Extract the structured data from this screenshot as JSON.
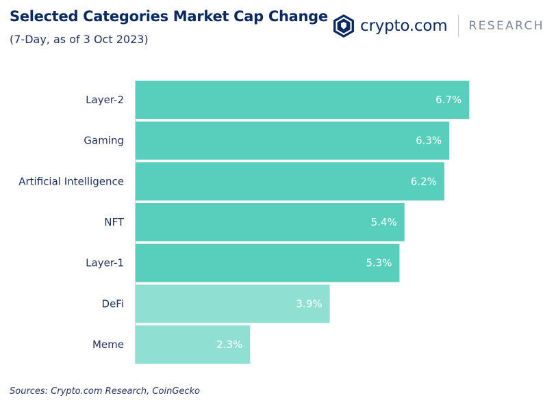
{
  "header": {
    "title": "Selected Categories Market Cap Change",
    "subtitle": "(7-Day, as of 3 Oct 2023)"
  },
  "logo": {
    "icon": "crypto-com-shield-icon",
    "brand": "crypto.com",
    "section": "RESEARCH"
  },
  "colors": {
    "bar_primary": "#58cfbd",
    "bar_secondary": "#8fdfd2",
    "axis": "#cfd6dd"
  },
  "chart_data": {
    "type": "bar",
    "orientation": "horizontal",
    "title": "Selected Categories Market Cap Change",
    "subtitle": "(7-Day, as of 3 Oct 2023)",
    "categories": [
      "Layer-2",
      "Gaming",
      "Artificial Intelligence",
      "NFT",
      "Layer-1",
      "DeFi",
      "Meme"
    ],
    "values": [
      6.7,
      6.3,
      6.2,
      5.4,
      5.3,
      3.9,
      2.3
    ],
    "value_labels": [
      "6.7%",
      "6.3%",
      "6.2%",
      "5.4%",
      "5.3%",
      "3.9%",
      "2.3%"
    ],
    "unit": "%",
    "xlim": [
      0,
      7.7
    ],
    "bar_styles": [
      "primary",
      "primary",
      "primary",
      "primary",
      "primary",
      "secondary",
      "secondary"
    ],
    "grid": false,
    "legend": "none"
  },
  "footer": {
    "source": "Sources: Crypto.com Research, CoinGecko"
  }
}
